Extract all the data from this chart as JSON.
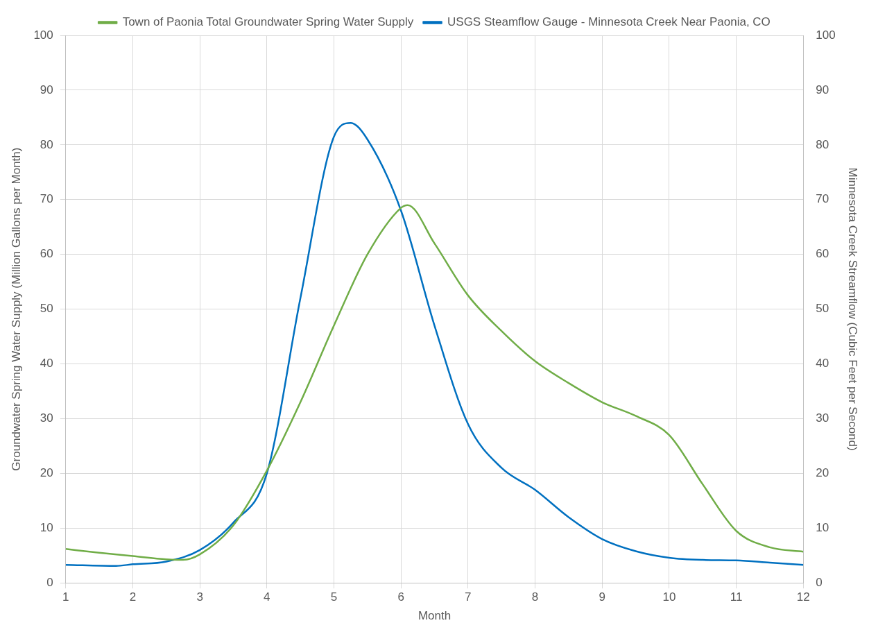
{
  "chart_data": {
    "type": "line",
    "xlabel": "Month",
    "ylabel": "Groundwater Spring Water Supply (Million Gallons per Month)",
    "y2label": "Minnesota Creek Streamflow (Cubic Feet per Second)",
    "xlim": [
      1,
      12
    ],
    "xticks": [
      1,
      2,
      3,
      4,
      5,
      6,
      7,
      8,
      9,
      10,
      11,
      12
    ],
    "ylim": [
      0,
      100
    ],
    "yticks": [
      0,
      10,
      20,
      30,
      40,
      50,
      60,
      70,
      80,
      90,
      100
    ],
    "y2lim": [
      0,
      100
    ],
    "y2ticks": [
      0,
      10,
      20,
      30,
      40,
      50,
      60,
      70,
      80,
      90,
      100
    ],
    "grid": true,
    "legend": "top",
    "marker": "none",
    "line_style": "solid",
    "series": [
      {
        "name": "Town of Paonia Total Groundwater Spring Water Supply",
        "color": "#70ad47",
        "x": [
          1,
          1.5,
          2,
          2.5,
          2.75,
          3,
          3.5,
          4,
          4.5,
          5,
          5.5,
          6,
          6.1,
          6.5,
          7,
          7.5,
          8,
          8.5,
          9,
          9.5,
          10,
          10.5,
          11,
          11.5,
          12
        ],
        "values": [
          6.2,
          5.5,
          4.9,
          4.3,
          4.2,
          5.2,
          10.5,
          20.5,
          33,
          47,
          60,
          68.5,
          69,
          62,
          52.5,
          46,
          40.5,
          36.5,
          33,
          30.5,
          27,
          18,
          9.5,
          6.5,
          5.7
        ]
      },
      {
        "name": "USGS Steamflow Gauge - Minnesota Creek Near Paonia, CO",
        "color": "#0070c0",
        "axis": "y2",
        "x": [
          1,
          1.75,
          2,
          2.5,
          3,
          3.5,
          4,
          4.5,
          5,
          5.25,
          5.5,
          6,
          6.5,
          7,
          7.5,
          8,
          8.5,
          9,
          9.5,
          10,
          10.5,
          11,
          11.5,
          12
        ],
        "values": [
          3.3,
          3.1,
          3.4,
          3.9,
          6,
          11,
          20,
          52,
          81.5,
          84,
          81,
          68,
          47,
          29,
          21,
          17,
          12,
          8,
          5.8,
          4.6,
          4.2,
          4.1,
          3.7,
          3.3
        ]
      }
    ]
  }
}
